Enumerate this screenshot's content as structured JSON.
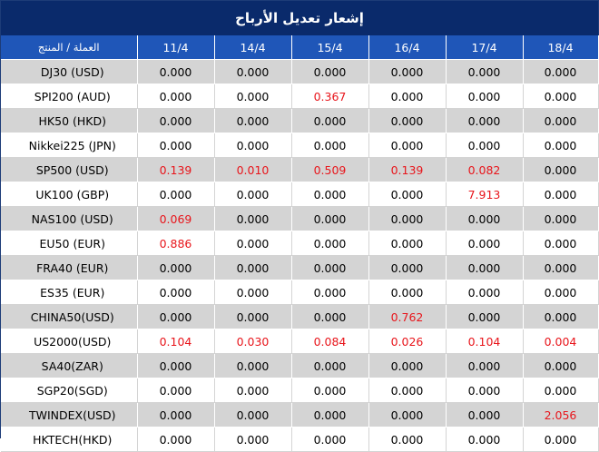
{
  "title": "إشعار تعديل الأرباح",
  "columns": {
    "product_header": "العملة / المنتج",
    "dates": [
      "11/4",
      "14/4",
      "15/4",
      "16/4",
      "17/4",
      "18/4"
    ]
  },
  "rows": [
    {
      "product": "DJ30 (USD)",
      "values": [
        "0.000",
        "0.000",
        "0.000",
        "0.000",
        "0.000",
        "0.000"
      ]
    },
    {
      "product": "SPI200 (AUD)",
      "values": [
        "0.000",
        "0.000",
        "0.367",
        "0.000",
        "0.000",
        "0.000"
      ]
    },
    {
      "product": "HK50 (HKD)",
      "values": [
        "0.000",
        "0.000",
        "0.000",
        "0.000",
        "0.000",
        "0.000"
      ]
    },
    {
      "product": "Nikkei225 (JPN)",
      "values": [
        "0.000",
        "0.000",
        "0.000",
        "0.000",
        "0.000",
        "0.000"
      ]
    },
    {
      "product": "SP500 (USD)",
      "values": [
        "0.139",
        "0.010",
        "0.509",
        "0.139",
        "0.082",
        "0.000"
      ]
    },
    {
      "product": "UK100 (GBP)",
      "values": [
        "0.000",
        "0.000",
        "0.000",
        "0.000",
        "7.913",
        "0.000"
      ]
    },
    {
      "product": "NAS100 (USD)",
      "values": [
        "0.069",
        "0.000",
        "0.000",
        "0.000",
        "0.000",
        "0.000"
      ]
    },
    {
      "product": "EU50 (EUR)",
      "values": [
        "0.886",
        "0.000",
        "0.000",
        "0.000",
        "0.000",
        "0.000"
      ]
    },
    {
      "product": "FRA40 (EUR)",
      "values": [
        "0.000",
        "0.000",
        "0.000",
        "0.000",
        "0.000",
        "0.000"
      ]
    },
    {
      "product": "ES35 (EUR)",
      "values": [
        "0.000",
        "0.000",
        "0.000",
        "0.000",
        "0.000",
        "0.000"
      ]
    },
    {
      "product": "CHINA50(USD)",
      "values": [
        "0.000",
        "0.000",
        "0.000",
        "0.762",
        "0.000",
        "0.000"
      ]
    },
    {
      "product": "US2000(USD)",
      "values": [
        "0.104",
        "0.030",
        "0.084",
        "0.026",
        "0.104",
        "0.004"
      ]
    },
    {
      "product": "SA40(ZAR)",
      "values": [
        "0.000",
        "0.000",
        "0.000",
        "0.000",
        "0.000",
        "0.000"
      ]
    },
    {
      "product": "SGP20(SGD)",
      "values": [
        "0.000",
        "0.000",
        "0.000",
        "0.000",
        "0.000",
        "0.000"
      ]
    },
    {
      "product": "TWINDEX(USD)",
      "values": [
        "0.000",
        "0.000",
        "0.000",
        "0.000",
        "0.000",
        "2.056"
      ]
    },
    {
      "product": "HKTECH(HKD)",
      "values": [
        "0.000",
        "0.000",
        "0.000",
        "0.000",
        "0.000",
        "0.000"
      ]
    }
  ],
  "colors": {
    "title_bg": "#0a2a6b",
    "header_bg": "#1f56b8",
    "stripe": "#d4d4d4",
    "nonzero_text": "#e8151b"
  }
}
